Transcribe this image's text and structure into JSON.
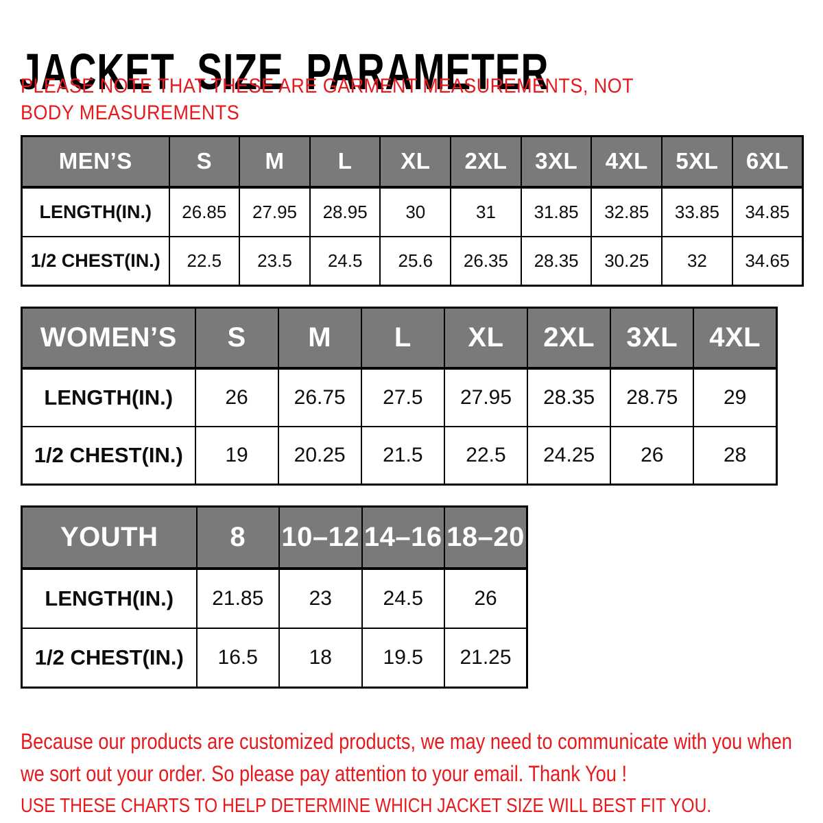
{
  "page": {
    "title": "JACKET SIZE PARAMETER",
    "note": "PLEASE NOTE THAT THESE ARE GARMENT MEASUREMENTS, NOT BODY MEASUREMENTS"
  },
  "colors": {
    "accent_red": "#e8191d",
    "header_gray": "#7a7a7a",
    "header_text": "#ffffff",
    "border": "#000000",
    "body_text": "#000000"
  },
  "tables": [
    {
      "name": "MEN’S",
      "sizes": [
        "S",
        "M",
        "L",
        "XL",
        "2XL",
        "3XL",
        "4XL",
        "5XL",
        "6XL"
      ],
      "rows": [
        {
          "label": "LENGTH(IN.)",
          "values": [
            "26.85",
            "27.95",
            "28.95",
            "30",
            "31",
            "31.85",
            "32.85",
            "33.85",
            "34.85"
          ]
        },
        {
          "label": "1/2 CHEST(IN.)",
          "values": [
            "22.5",
            "23.5",
            "24.5",
            "25.6",
            "26.35",
            "28.35",
            "30.25",
            "32",
            "34.65"
          ]
        }
      ]
    },
    {
      "name": "WOMEN’S",
      "sizes": [
        "S",
        "M",
        "L",
        "XL",
        "2XL",
        "3XL",
        "4XL"
      ],
      "rows": [
        {
          "label": "LENGTH(IN.)",
          "values": [
            "26",
            "26.75",
            "27.5",
            "27.95",
            "28.35",
            "28.75",
            "29"
          ]
        },
        {
          "label": "1/2 CHEST(IN.)",
          "values": [
            "19",
            "20.25",
            "21.5",
            "22.5",
            "24.25",
            "26",
            "28"
          ]
        }
      ]
    },
    {
      "name": "YOUTH",
      "sizes": [
        "8",
        "10–12",
        "14–16",
        "18–20"
      ],
      "rows": [
        {
          "label": "LENGTH(IN.)",
          "values": [
            "21.85",
            "23",
            "24.5",
            "26"
          ]
        },
        {
          "label": "1/2 CHEST(IN.)",
          "values": [
            "16.5",
            "18",
            "19.5",
            "21.25"
          ]
        }
      ]
    }
  ],
  "footer": {
    "notice": "Because our products are customized products, we may need to communicate with you when we sort out your order. So please pay attention to your email. Thank You !",
    "fit_guide": "USE THESE CHARTS TO HELP DETERMINE WHICH JACKET SIZE WILL BEST FIT YOU."
  }
}
